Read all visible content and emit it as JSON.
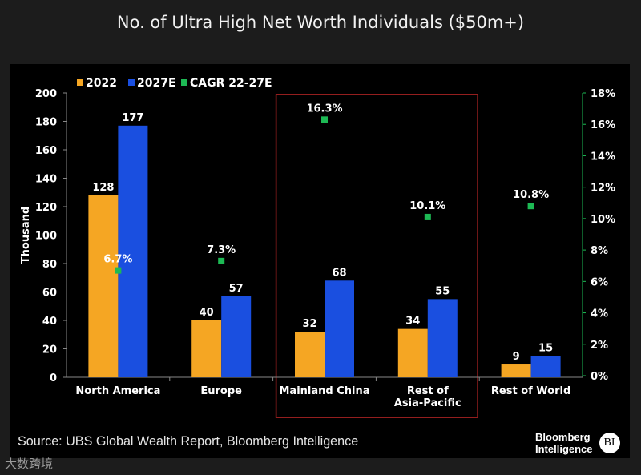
{
  "title": "No. of Ultra High Net Worth Individuals ($50m+)",
  "source": "Source: UBS Global Wealth Report, Bloomberg Intelligence",
  "logo": {
    "line1": "Bloomberg",
    "line2": "Intelligence",
    "badge": "BI"
  },
  "watermark": "大数跨境",
  "colors": {
    "s2022": "#f5a623",
    "s2027": "#1a4fe0",
    "cagr": "#1db954",
    "highlight": "#c62828",
    "axis": "#888888"
  },
  "chart_data": {
    "type": "bar",
    "title": "No. of Ultra High Net Worth Individuals ($50m+)",
    "ylabel": "Thousand",
    "ylim": [
      0,
      200
    ],
    "yticks": [
      0,
      20,
      40,
      60,
      80,
      100,
      120,
      140,
      160,
      180,
      200
    ],
    "y2lim": [
      0,
      18
    ],
    "y2ticks": [
      0,
      2,
      4,
      6,
      8,
      10,
      12,
      14,
      16,
      18
    ],
    "y2tick_suffix": "%",
    "legend": [
      "2022",
      "2027E",
      "CAGR 22-27E"
    ],
    "legend_position": "top-left",
    "categories": [
      [
        "North America"
      ],
      [
        "Europe"
      ],
      [
        "Mainland China"
      ],
      [
        "Rest of",
        "Asia-Pacific"
      ],
      [
        "Rest of World"
      ]
    ],
    "series": [
      {
        "name": "2022",
        "values": [
          128,
          40,
          32,
          34,
          9
        ]
      },
      {
        "name": "2027E",
        "values": [
          177,
          57,
          68,
          55,
          15
        ]
      },
      {
        "name": "CAGR 22-27E",
        "axis": "right",
        "values": [
          6.7,
          7.3,
          16.3,
          10.1,
          10.8
        ],
        "labels": [
          "6.7%",
          "7.3%",
          "16.3%",
          "10.1%",
          "10.8%"
        ]
      }
    ],
    "highlight_categories": [
      "Mainland China",
      "Rest of Asia-Pacific"
    ]
  }
}
